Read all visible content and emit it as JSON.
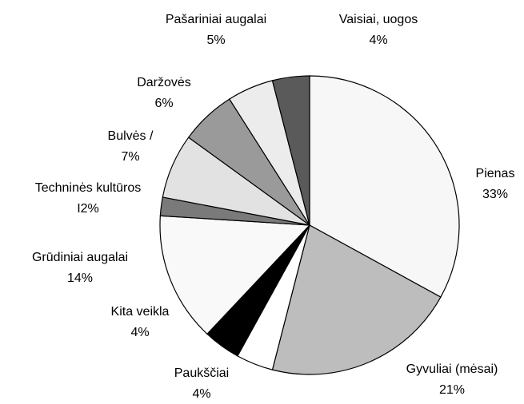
{
  "chart_data": {
    "type": "pie",
    "categories": [
      "Pienas",
      "Gyvuliai (mėsai)",
      "Paukščiai",
      "Kita veikla",
      "Grūdiniai augalai",
      "Techninės kultūros",
      "Bulvės /",
      "Daržovės",
      "Pašariniai augalai",
      "Vaisiai, uogos"
    ],
    "values": [
      33,
      21,
      4,
      4,
      14,
      2,
      7,
      6,
      5,
      4
    ],
    "value_labels": [
      "33%",
      "21%",
      "4%",
      "4%",
      "14%",
      "I2%",
      "7%",
      "6%",
      "5%",
      "4%"
    ],
    "colors": [
      "#f7f7f7",
      "#bdbdbd",
      "#ffffff",
      "#000000",
      "#f9f9f9",
      "#7a7a7a",
      "#e2e2e2",
      "#9a9a9a",
      "#ececec",
      "#5a5a5a"
    ]
  }
}
